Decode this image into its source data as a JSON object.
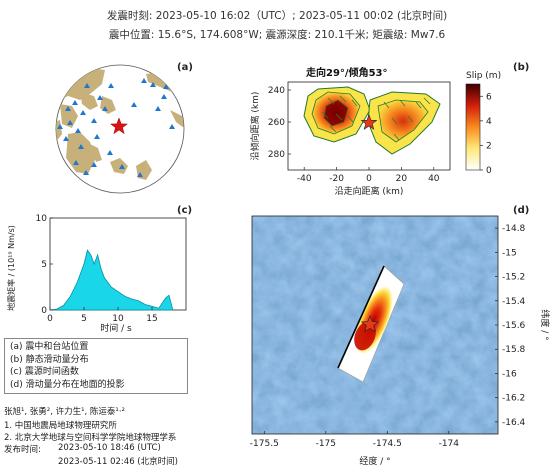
{
  "header": {
    "line1": "发震时刻: 2023-05-10 16:02（UTC）;   2023-05-11  00:02 (北京时间)",
    "line2": "震中位置: 15.6°S, 174.608°W;  震源深度: 210.1千米; 矩震级: Mw7.6"
  },
  "panels": {
    "a": {
      "label": "(a)"
    },
    "b": {
      "label": "(b)",
      "title": "走向29°/倾角53°"
    },
    "c": {
      "label": "(c)"
    },
    "d": {
      "label": "(d)"
    }
  },
  "chart_data": [
    {
      "type": "heatmap",
      "panel": "b",
      "title": "走向29°/倾角53°",
      "xlabel": "沿走向距离 (km)",
      "ylabel": "沿倾向距离 (km)",
      "xlim": [
        -50,
        50
      ],
      "ylim": [
        290,
        235
      ],
      "xticks": [
        "-40",
        "-20",
        "0",
        "20",
        "40"
      ],
      "yticks": [
        "240",
        "260",
        "280"
      ],
      "colorbar": {
        "label": "Slip (m)",
        "range": [
          0,
          7
        ],
        "ticks": [
          "6",
          "4",
          "2",
          "0"
        ]
      },
      "hypocenter": {
        "x": 0,
        "y": 262
      },
      "peak_slip": [
        {
          "x": -20,
          "y": 260,
          "value": 7
        },
        {
          "x": 8,
          "y": 262,
          "value": 4.5
        }
      ]
    },
    {
      "type": "area",
      "panel": "c",
      "xlabel": "时间 / s",
      "ylabel": "地震矩率 / (10¹⁹ Nm/s)",
      "xlim": [
        0,
        20
      ],
      "ylim": [
        0,
        10
      ],
      "xticks": [
        "0",
        "5",
        "10",
        "15"
      ],
      "yticks": [
        "0",
        "5",
        "10"
      ],
      "x": [
        0,
        1,
        2,
        3,
        4,
        5,
        5.5,
        6,
        6.5,
        7,
        7.5,
        8,
        9,
        10,
        11,
        12,
        13,
        14,
        15,
        16,
        17,
        17.5,
        18
      ],
      "values": [
        0,
        0.1,
        0.5,
        1.5,
        3,
        5,
        6.5,
        6,
        5,
        6,
        4.5,
        3.5,
        2.5,
        2,
        1.5,
        1.2,
        1,
        0.6,
        0.4,
        0.2,
        1.3,
        1.6,
        0.2
      ]
    },
    {
      "type": "heatmap",
      "panel": "d",
      "xlabel": "经度 / °",
      "ylabel": "纬度 / °",
      "xlim": [
        -175.6,
        -173.6
      ],
      "ylim": [
        -16.5,
        -14.7
      ],
      "xticks": [
        "-175.5",
        "-175",
        "-174.5",
        "-174"
      ],
      "yticks": [
        "-14.8",
        "-15",
        "-15.2",
        "-15.4",
        "-15.6",
        "-15.8",
        "-16",
        "-16.2",
        "-16.4"
      ],
      "epicenter": {
        "lon": -174.608,
        "lat": -15.6
      }
    }
  ],
  "legend": {
    "items": [
      "(a) 震中和台站位置",
      "(b) 静态滑动量分布",
      "(c) 震源时间函数",
      "(d) 滑动量分布在地面的投影"
    ]
  },
  "credits": {
    "authors": "张旭¹, 张勇², 许力生¹, 陈运泰¹·²",
    "aff1": "1. 中国地震局地球物理研究所",
    "aff2": "2. 北京大学地球与空间科学学院地球物理学系",
    "release_label": "发布时间:",
    "release_utc": "2023-05-10  18:46 (UTC)",
    "release_bj": "2023-05-11  02:46 (北京时间)"
  },
  "colors": {
    "station": "#1f77d0",
    "star": "#dd1111",
    "land": "#c8b07a",
    "sea": "#4a7fb8"
  }
}
